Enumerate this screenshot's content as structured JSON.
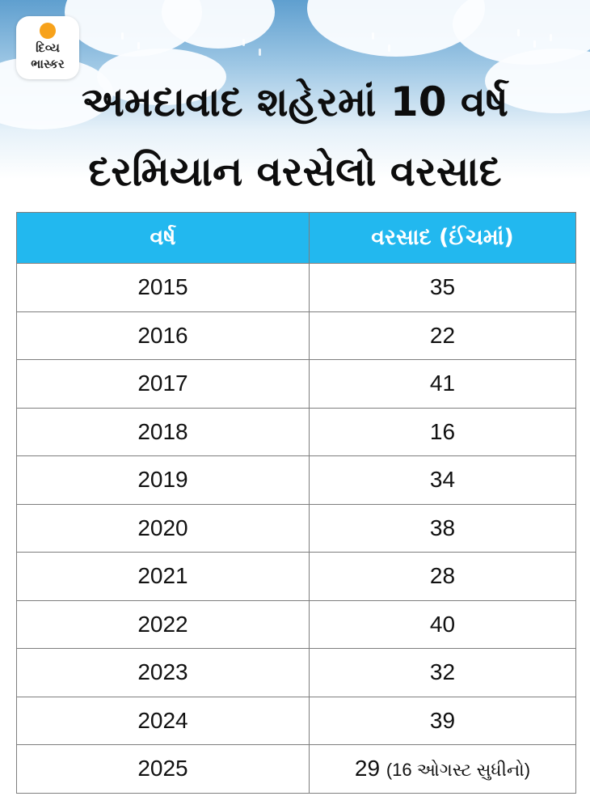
{
  "logo": {
    "line1": "દિવ્ય",
    "line2": "ભાસ્કર"
  },
  "title": {
    "line1": "અમદાવાદ શહેરમાં 10 વર્ષ",
    "line2": "દરમિયાન વરસેલો વરસાદ"
  },
  "table": {
    "columns": [
      "વર્ષ",
      "વરસાદ (ઈંચમાં)"
    ],
    "rows": [
      {
        "year": "2015",
        "rain": "35"
      },
      {
        "year": "2016",
        "rain": "22"
      },
      {
        "year": "2017",
        "rain": "41"
      },
      {
        "year": "2018",
        "rain": "16"
      },
      {
        "year": "2019",
        "rain": "34"
      },
      {
        "year": "2020",
        "rain": "38"
      },
      {
        "year": "2021",
        "rain": "28"
      },
      {
        "year": "2022",
        "rain": "40"
      },
      {
        "year": "2023",
        "rain": "32"
      },
      {
        "year": "2024",
        "rain": "39"
      },
      {
        "year": "2025",
        "rain": "29",
        "note": "(16 ઓગસ્ટ સુધીનો)"
      }
    ]
  }
}
